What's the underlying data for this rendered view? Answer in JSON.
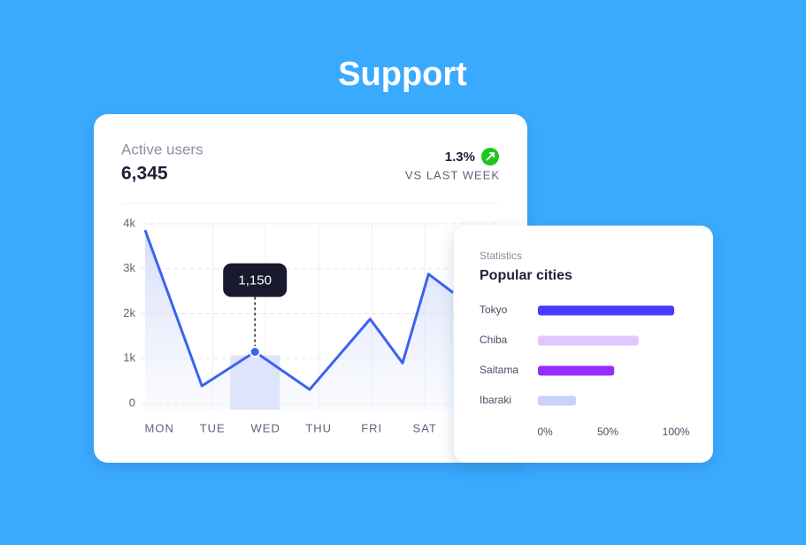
{
  "header": {
    "title": "Support"
  },
  "chart_data": [
    {
      "type": "line",
      "title": "Active users",
      "value": "6,345",
      "change": "1.3%",
      "change_label": "VS LAST WEEK",
      "x": [
        -0.27,
        0.8,
        1.8,
        2.83,
        3.97,
        4.58,
        5.07,
        5.53
      ],
      "values": [
        3860,
        390,
        1150,
        310,
        1880,
        900,
        2880,
        2470
      ],
      "value_labels": [
        null,
        null,
        "1,150",
        null,
        null,
        null,
        null,
        null
      ],
      "xlim": [
        -0.27,
        6.33
      ],
      "xticks": [
        {
          "value": 0,
          "label": "MON"
        },
        {
          "value": 1,
          "label": "TUE"
        },
        {
          "value": 2,
          "label": "WED"
        },
        {
          "value": 3,
          "label": "THU"
        },
        {
          "value": 4,
          "label": "FRI"
        },
        {
          "value": 5,
          "label": "SAT"
        }
      ],
      "ylim": [
        0,
        4000
      ],
      "yticks": [
        0,
        {
          "value": 1000,
          "label": "1k"
        },
        {
          "value": 2000,
          "label": "2k"
        },
        {
          "value": 3000,
          "label": "3k"
        },
        {
          "value": 4000,
          "label": "4k"
        }
      ],
      "color": "#3b63f0",
      "grid": true
    },
    {
      "type": "bar",
      "orientation": "horizontal",
      "subtitle": "Statistics",
      "title": "Popular cities",
      "categories": [
        "Tokyo",
        "Chiba",
        "Saitama",
        "Ibaraki"
      ],
      "values": [
        100,
        74,
        56,
        28
      ],
      "colors": [
        "#4a3aff",
        "#e0c6fd",
        "#962dff",
        "#c6d2fd"
      ],
      "xlim": [
        0,
        100
      ],
      "xticks": [
        {
          "value": 0,
          "label": "0%"
        },
        {
          "value": 50,
          "label": "50%"
        },
        {
          "value": 100,
          "label": "100%"
        }
      ]
    }
  ]
}
